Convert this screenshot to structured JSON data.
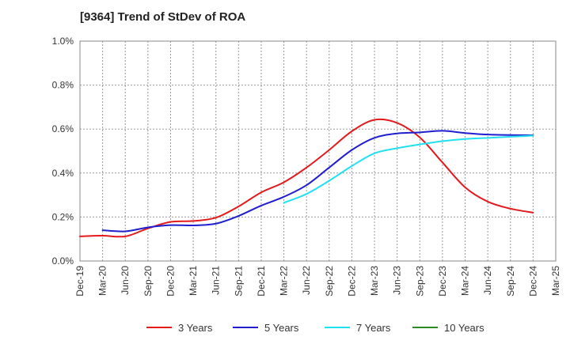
{
  "chart_data": {
    "type": "line",
    "title": "[9364]  Trend of StDev of ROA",
    "xlabel": "",
    "ylabel": "",
    "x": [
      "Dec-19",
      "Mar-20",
      "Jun-20",
      "Sep-20",
      "Dec-20",
      "Mar-21",
      "Jun-21",
      "Sep-21",
      "Dec-21",
      "Mar-22",
      "Jun-22",
      "Sep-22",
      "Dec-22",
      "Mar-23",
      "Jun-23",
      "Sep-23",
      "Dec-23",
      "Mar-24",
      "Jun-24",
      "Sep-24",
      "Dec-24",
      "Mar-25"
    ],
    "ylim": [
      0,
      1.0
    ],
    "yticks": [
      "0.0%",
      "0.2%",
      "0.4%",
      "0.6%",
      "0.8%",
      "1.0%"
    ],
    "grid": true,
    "legend_position": "bottom",
    "series": [
      {
        "name": "3 Years",
        "color": "#e31a1c",
        "values": [
          0.112,
          0.115,
          0.112,
          0.148,
          0.178,
          0.182,
          0.197,
          0.248,
          0.312,
          0.358,
          0.425,
          0.505,
          0.59,
          0.642,
          0.628,
          0.562,
          0.448,
          0.335,
          0.27,
          0.238,
          0.22,
          null
        ]
      },
      {
        "name": "5 Years",
        "color": "#1f1fcf",
        "values": [
          null,
          0.14,
          0.135,
          0.153,
          0.163,
          0.162,
          0.17,
          0.205,
          0.252,
          0.292,
          0.345,
          0.425,
          0.505,
          0.56,
          0.58,
          0.585,
          0.592,
          0.582,
          0.575,
          0.573,
          0.572,
          null
        ]
      },
      {
        "name": "7 Years",
        "color": "#22e0f0",
        "values": [
          null,
          null,
          null,
          null,
          null,
          null,
          null,
          null,
          null,
          0.265,
          0.305,
          0.365,
          0.432,
          0.49,
          0.513,
          0.53,
          0.545,
          0.555,
          0.56,
          0.565,
          0.57,
          null
        ]
      },
      {
        "name": "10 Years",
        "color": "#2a8a2a",
        "values": [
          null,
          null,
          null,
          null,
          null,
          null,
          null,
          null,
          null,
          null,
          null,
          null,
          null,
          null,
          null,
          null,
          null,
          null,
          null,
          null,
          null,
          null
        ]
      }
    ]
  }
}
